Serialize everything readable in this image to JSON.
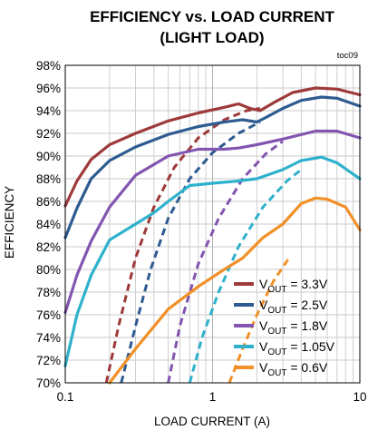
{
  "chart_data": {
    "type": "line",
    "title_line1": "EFFICIENCY vs. LOAD CURRENT",
    "title_line2": "(LIGHT LOAD)",
    "tag": "toc09",
    "xlabel": "LOAD CURRENT (A)",
    "ylabel": "EFFICIENCY",
    "xscale": "log",
    "xlim": [
      0.1,
      10
    ],
    "ylim": [
      70,
      98
    ],
    "grid": true,
    "legend_position": "bottom-right",
    "x_ticks": [
      {
        "value": 0.1,
        "label": "0.1"
      },
      {
        "value": 1,
        "label": "1"
      },
      {
        "value": 10,
        "label": "10"
      }
    ],
    "y_ticks": [
      70,
      72,
      74,
      76,
      78,
      80,
      82,
      84,
      86,
      88,
      90,
      92,
      94,
      96,
      98
    ],
    "y_tick_suffix": "%",
    "series": [
      {
        "legend": {
          "sym": "V",
          "sub": "OUT",
          "rest": " = 3.3V"
        },
        "color": "#9e3a3a",
        "solid": [
          [
            0.1,
            85.6
          ],
          [
            0.12,
            87.8
          ],
          [
            0.15,
            89.7
          ],
          [
            0.2,
            91.0
          ],
          [
            0.3,
            92.0
          ],
          [
            0.5,
            93.1
          ],
          [
            0.8,
            93.8
          ],
          [
            1.2,
            94.3
          ],
          [
            1.5,
            94.6
          ],
          [
            1.8,
            94.2
          ],
          [
            2.1,
            94.0
          ],
          [
            2.6,
            94.7
          ],
          [
            3.5,
            95.6
          ],
          [
            5,
            96.0
          ],
          [
            7,
            95.9
          ],
          [
            10,
            95.4
          ]
        ],
        "dashed": [
          [
            0.19,
            70
          ],
          [
            0.23,
            75
          ],
          [
            0.3,
            81
          ],
          [
            0.4,
            85.5
          ],
          [
            0.55,
            89
          ],
          [
            0.8,
            91.6
          ],
          [
            1.2,
            93.2
          ],
          [
            1.7,
            94.0
          ],
          [
            2.1,
            94.2
          ]
        ]
      },
      {
        "legend": {
          "sym": "V",
          "sub": "OUT",
          "rest": " = 2.5V"
        },
        "color": "#2e5b91",
        "solid": [
          [
            0.1,
            82.8
          ],
          [
            0.12,
            85.4
          ],
          [
            0.15,
            88.0
          ],
          [
            0.2,
            89.6
          ],
          [
            0.3,
            90.8
          ],
          [
            0.5,
            91.9
          ],
          [
            0.8,
            92.6
          ],
          [
            1.2,
            93.0
          ],
          [
            1.6,
            93.2
          ],
          [
            2.0,
            93.0
          ],
          [
            2.3,
            93.4
          ],
          [
            3,
            94.2
          ],
          [
            4,
            94.9
          ],
          [
            5.5,
            95.2
          ],
          [
            7,
            95.1
          ],
          [
            10,
            94.4
          ]
        ],
        "dashed": [
          [
            0.24,
            70
          ],
          [
            0.3,
            75
          ],
          [
            0.38,
            80
          ],
          [
            0.5,
            84.5
          ],
          [
            0.7,
            88
          ],
          [
            1.0,
            90.3
          ],
          [
            1.5,
            92.0
          ],
          [
            2.1,
            93.0
          ]
        ]
      },
      {
        "legend": {
          "sym": "V",
          "sub": "OUT",
          "rest": " = 1.8V"
        },
        "color": "#8255b0",
        "solid": [
          [
            0.1,
            76.2
          ],
          [
            0.12,
            79.5
          ],
          [
            0.15,
            82.5
          ],
          [
            0.2,
            85.5
          ],
          [
            0.3,
            88.3
          ],
          [
            0.5,
            90.0
          ],
          [
            0.8,
            90.6
          ],
          [
            1.2,
            90.6
          ],
          [
            1.5,
            90.7
          ],
          [
            2,
            91.0
          ],
          [
            3,
            91.5
          ],
          [
            5,
            92.2
          ],
          [
            7,
            92.2
          ],
          [
            10,
            91.6
          ]
        ],
        "dashed": [
          [
            0.5,
            70
          ],
          [
            0.6,
            75
          ],
          [
            0.8,
            80.5
          ],
          [
            1.1,
            84.5
          ],
          [
            1.6,
            88
          ],
          [
            2.3,
            90.2
          ],
          [
            3.0,
            91.3
          ]
        ]
      },
      {
        "legend": {
          "sym": "V",
          "sub": "OUT",
          "rest": " = 1.05V"
        },
        "color": "#2eb1cc",
        "solid": [
          [
            0.1,
            71.5
          ],
          [
            0.12,
            76
          ],
          [
            0.15,
            79.5
          ],
          [
            0.2,
            82.6
          ],
          [
            0.3,
            84
          ],
          [
            0.4,
            85.0
          ],
          [
            0.5,
            86.0
          ],
          [
            0.7,
            87.4
          ],
          [
            1.0,
            87.6
          ],
          [
            1.5,
            87.8
          ],
          [
            2,
            88.0
          ],
          [
            3,
            88.8
          ],
          [
            4,
            89.6
          ],
          [
            5.5,
            89.9
          ],
          [
            7,
            89.4
          ],
          [
            10,
            88.0
          ]
        ],
        "dashed": [
          [
            0.7,
            70
          ],
          [
            0.85,
            74
          ],
          [
            1.1,
            78
          ],
          [
            1.5,
            82
          ],
          [
            2.2,
            85.5
          ],
          [
            3.2,
            87.8
          ],
          [
            4,
            88.8
          ]
        ]
      },
      {
        "legend": {
          "sym": "V",
          "sub": "OUT",
          "rest": " = 0.6V"
        },
        "color": "#f29028",
        "solid": [
          [
            0.2,
            70
          ],
          [
            0.3,
            73
          ],
          [
            0.5,
            76.5
          ],
          [
            0.8,
            78.5
          ],
          [
            1.2,
            80
          ],
          [
            1.6,
            81
          ],
          [
            2.2,
            82.8
          ],
          [
            3,
            84
          ],
          [
            4,
            85.8
          ],
          [
            5,
            86.3
          ],
          [
            6,
            86.2
          ],
          [
            8,
            85.5
          ],
          [
            10,
            83.5
          ]
        ],
        "dashed": [
          [
            1.3,
            70
          ],
          [
            1.6,
            73
          ],
          [
            2.0,
            76
          ],
          [
            2.6,
            79
          ],
          [
            3.3,
            81
          ]
        ]
      }
    ]
  }
}
